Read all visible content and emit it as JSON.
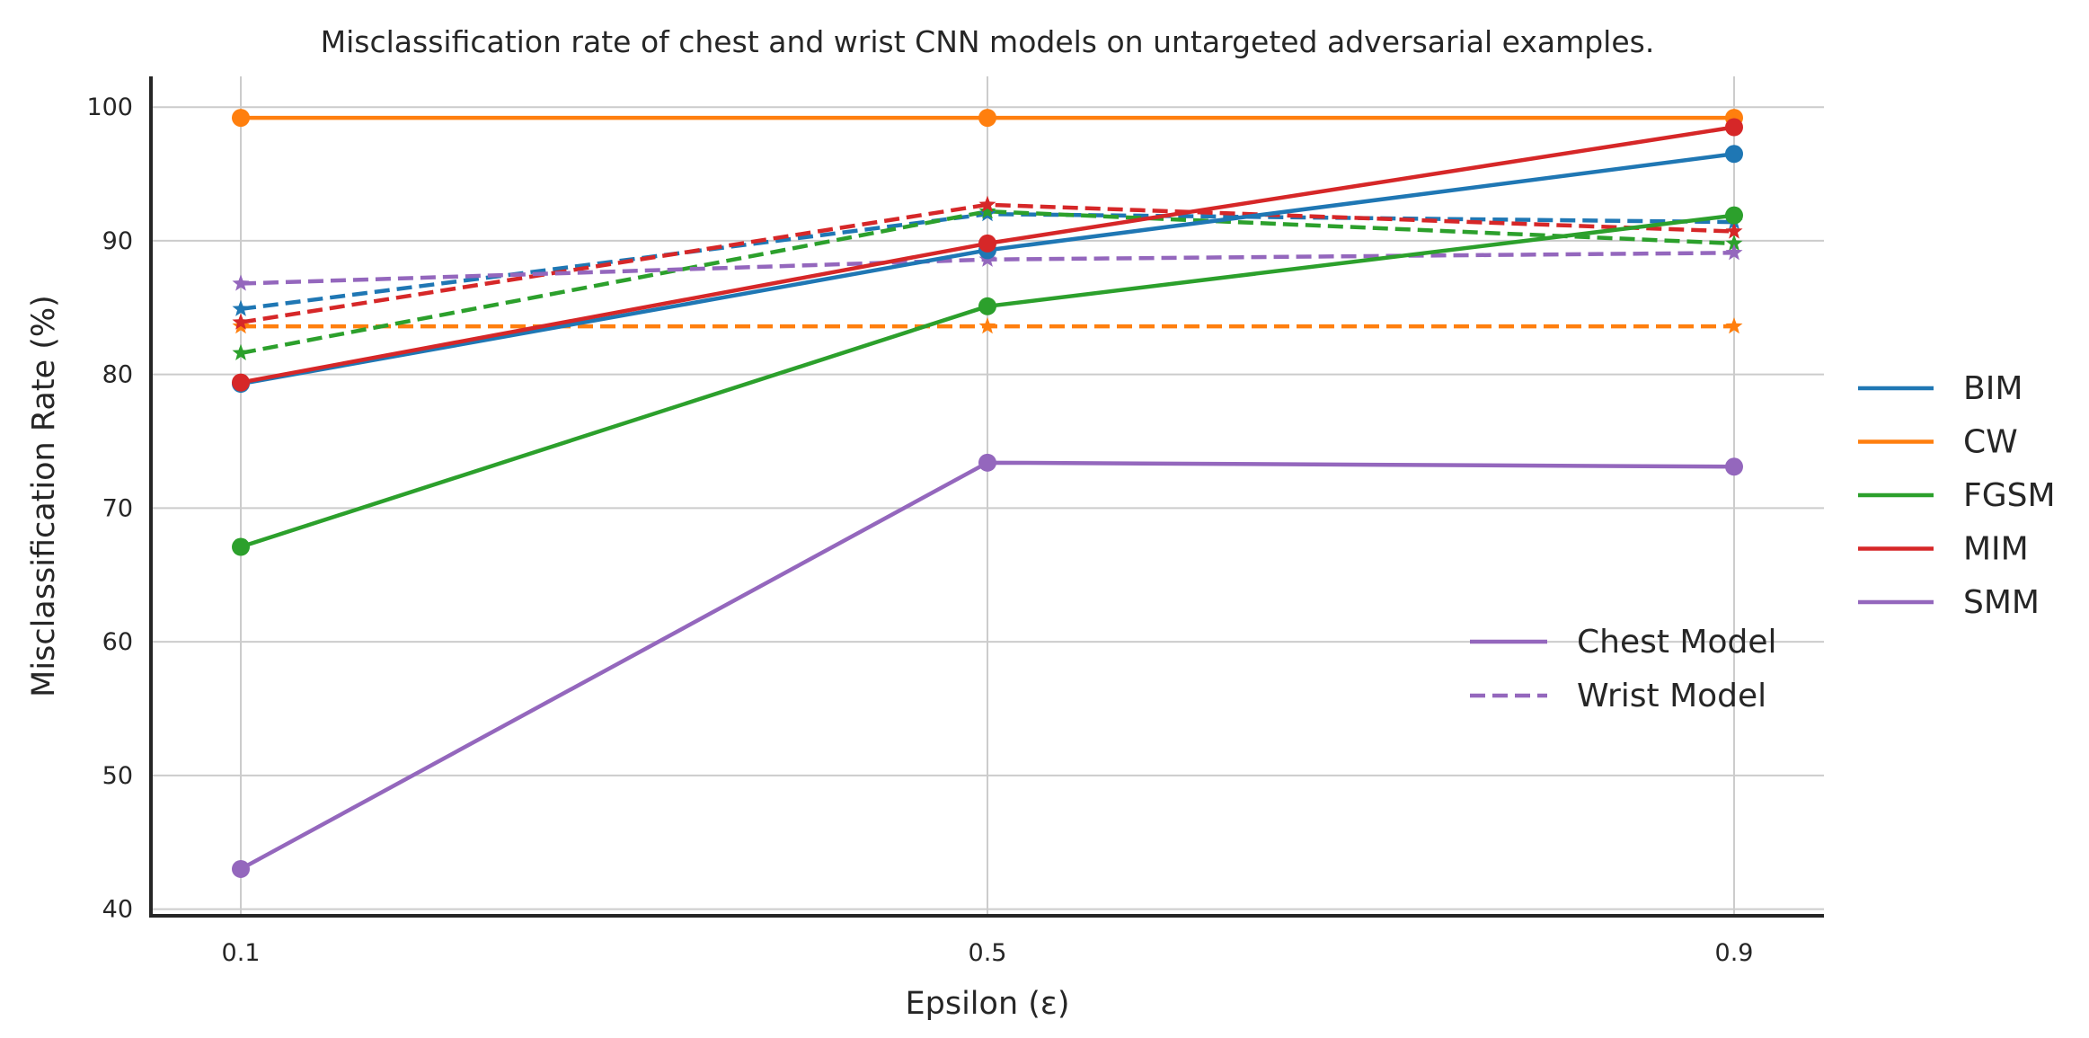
{
  "chart_data": {
    "type": "line",
    "title": "Misclassification rate of chest and wrist CNN models on untargeted adversarial examples.",
    "xlabel": "Epsilon (ε)",
    "ylabel": "Misclassification Rate (%)",
    "x": [
      0.1,
      0.5,
      0.9
    ],
    "x_tick_labels": [
      "0.1",
      "0.5",
      "0.9"
    ],
    "ylim": [
      39.5,
      102.3
    ],
    "y_ticks": [
      40,
      50,
      60,
      70,
      80,
      90,
      100
    ],
    "y_tick_labels": [
      "40",
      "50",
      "60",
      "70",
      "80",
      "90",
      "100"
    ],
    "grid": true,
    "colors": {
      "BIM": "#1f77b4",
      "CW": "#ff7f0e",
      "FGSM": "#2ca02c",
      "MIM": "#d62728",
      "SMM": "#9467bd"
    },
    "series": [
      {
        "name": "BIM",
        "model": "Chest Model",
        "values": [
          79.3,
          89.3,
          96.5
        ]
      },
      {
        "name": "CW",
        "model": "Chest Model",
        "values": [
          99.2,
          99.2,
          99.2
        ]
      },
      {
        "name": "FGSM",
        "model": "Chest Model",
        "values": [
          67.1,
          85.1,
          91.9
        ]
      },
      {
        "name": "MIM",
        "model": "Chest Model",
        "values": [
          79.4,
          89.8,
          98.5
        ]
      },
      {
        "name": "SMM",
        "model": "Chest Model",
        "values": [
          43.0,
          73.4,
          73.1
        ]
      },
      {
        "name": "BIM",
        "model": "Wrist Model",
        "values": [
          84.9,
          92.0,
          91.4
        ]
      },
      {
        "name": "CW",
        "model": "Wrist Model",
        "values": [
          83.6,
          83.6,
          83.6
        ]
      },
      {
        "name": "FGSM",
        "model": "Wrist Model",
        "values": [
          81.6,
          92.2,
          89.8
        ]
      },
      {
        "name": "MIM",
        "model": "Wrist Model",
        "values": [
          83.9,
          92.7,
          90.7
        ]
      },
      {
        "name": "SMM",
        "model": "Wrist Model",
        "values": [
          86.8,
          88.6,
          89.1
        ]
      }
    ],
    "legend_attacks": {
      "placement": "right-outside",
      "entries": [
        "BIM",
        "CW",
        "FGSM",
        "MIM",
        "SMM"
      ]
    },
    "legend_models": {
      "placement": "lower-right",
      "entries": [
        {
          "label": "Chest Model",
          "style": "solid"
        },
        {
          "label": "Wrist Model",
          "style": "dashed"
        }
      ]
    }
  }
}
